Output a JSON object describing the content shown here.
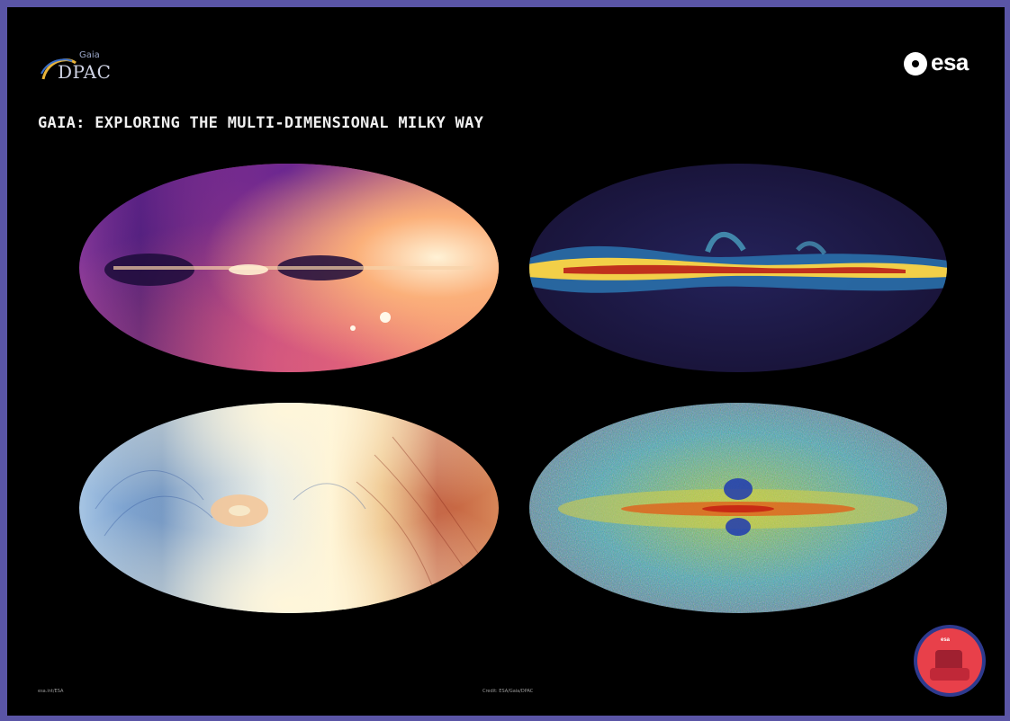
{
  "header": {
    "logo_left_small": "Gaia",
    "logo_left_main": "DPAC",
    "logo_right": "esa",
    "title": "GAIA: EXPLORING THE MULTI-DIMENSIONAL MILKY WAY"
  },
  "maps": [
    {
      "name": "sky-map-star-density",
      "palette": [
        "#2a0f5a",
        "#7a2a8c",
        "#d45a78",
        "#fbb57d",
        "#fff4d8"
      ]
    },
    {
      "name": "sky-map-interstellar-dust",
      "palette": [
        "#1a1336",
        "#2c2a6e",
        "#2a7fb0",
        "#f6d24a",
        "#c83018"
      ]
    },
    {
      "name": "sky-map-stellar-velocity",
      "palette": [
        "#2a4f9c",
        "#bcd6ea",
        "#fff6d8",
        "#eec07a",
        "#b8402a"
      ]
    },
    {
      "name": "sky-map-chemical-composition",
      "palette": [
        "#1a2a8c",
        "#3aa8b8",
        "#b6d84a",
        "#f0a030",
        "#d8301a"
      ]
    }
  ],
  "footer": {
    "left": "esa.int/ESA",
    "center": "Credit: ESA/Gaia/DPAC"
  },
  "colors": {
    "frame": "#5a55a6",
    "poster_bg": "#000000",
    "title_text": "#f0f0f0"
  }
}
